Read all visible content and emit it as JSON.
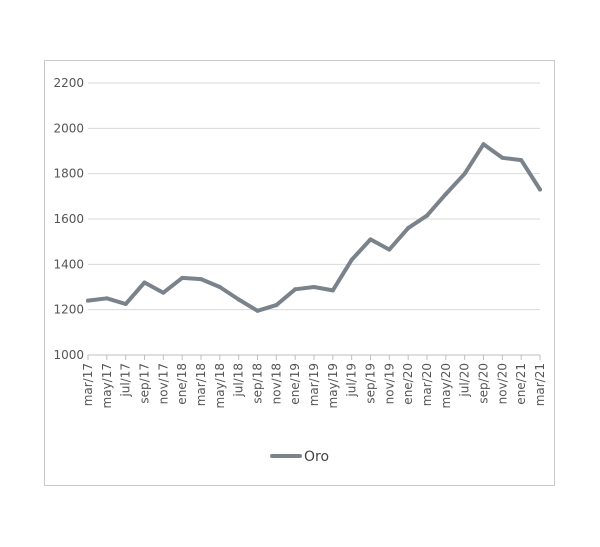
{
  "chart_data": {
    "type": "line",
    "title": "",
    "xlabel": "",
    "ylabel": "",
    "ylim": [
      1000,
      2200
    ],
    "yticks": [
      1000,
      1200,
      1400,
      1600,
      1800,
      2000,
      2200
    ],
    "xticks": [
      "mar/17",
      "may/17",
      "jul/17",
      "sep/17",
      "nov/17",
      "ene/18",
      "mar/18",
      "may/18",
      "jul/18",
      "sep/18",
      "nov/18",
      "ene/19",
      "mar/19",
      "may/19",
      "jul/19",
      "sep/19",
      "nov/19",
      "ene/20",
      "mar/20",
      "may/20",
      "jul/20",
      "sep/20",
      "nov/20",
      "ene/21",
      "mar/21"
    ],
    "grid": "horizontal",
    "legend": "bottom-center",
    "series": [
      {
        "name": "Oro",
        "color": "#7a838c",
        "x": [
          "mar/17",
          "may/17",
          "jul/17",
          "sep/17",
          "nov/17",
          "ene/18",
          "mar/18",
          "may/18",
          "jul/18",
          "sep/18",
          "nov/18",
          "ene/19",
          "mar/19",
          "may/19",
          "jul/19",
          "sep/19",
          "nov/19",
          "ene/20",
          "mar/20",
          "may/20",
          "jul/20",
          "sep/20",
          "nov/20",
          "ene/21",
          "mar/21"
        ],
        "values": [
          1240,
          1250,
          1225,
          1320,
          1275,
          1340,
          1335,
          1300,
          1245,
          1195,
          1220,
          1290,
          1300,
          1285,
          1420,
          1510,
          1465,
          1560,
          1615,
          1710,
          1800,
          1930,
          1870,
          1860,
          1730
        ]
      }
    ]
  }
}
